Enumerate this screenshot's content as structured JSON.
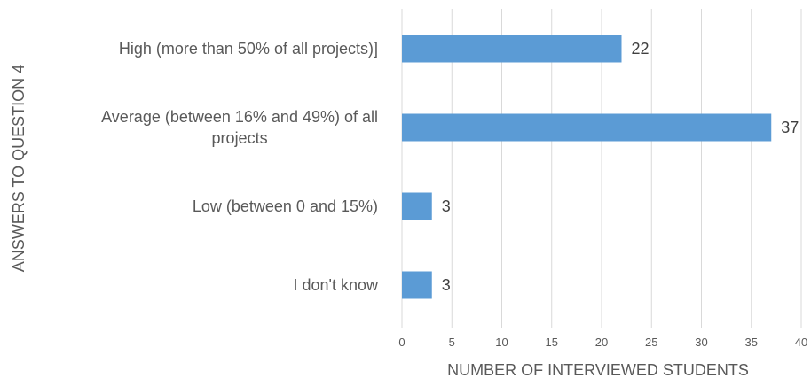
{
  "chart_data": {
    "type": "bar",
    "orientation": "horizontal",
    "categories": [
      "High (more than 50% of all projects)]",
      "Average (between 16% and 49%) of all projects",
      "Low (between 0 and 15%)",
      "I don't know"
    ],
    "category_label_lines": [
      [
        "High (more than 50% of all projects)]"
      ],
      [
        "Average (between 16% and 49%) of all",
        "projects"
      ],
      [
        "Low (between 0 and 15%)"
      ],
      [
        "I don't know"
      ]
    ],
    "values": [
      22,
      37,
      3,
      3
    ],
    "xlabel": "NUMBER OF INTERVIEWED STUDENTS",
    "ylabel": "ANSWERS TO QUESTION 4",
    "xlim": [
      0,
      40
    ],
    "xticks": [
      0,
      5,
      10,
      15,
      20,
      25,
      30,
      35,
      40
    ],
    "grid": "vertical",
    "legend": "none",
    "bar_color": "#5b9bd5"
  }
}
